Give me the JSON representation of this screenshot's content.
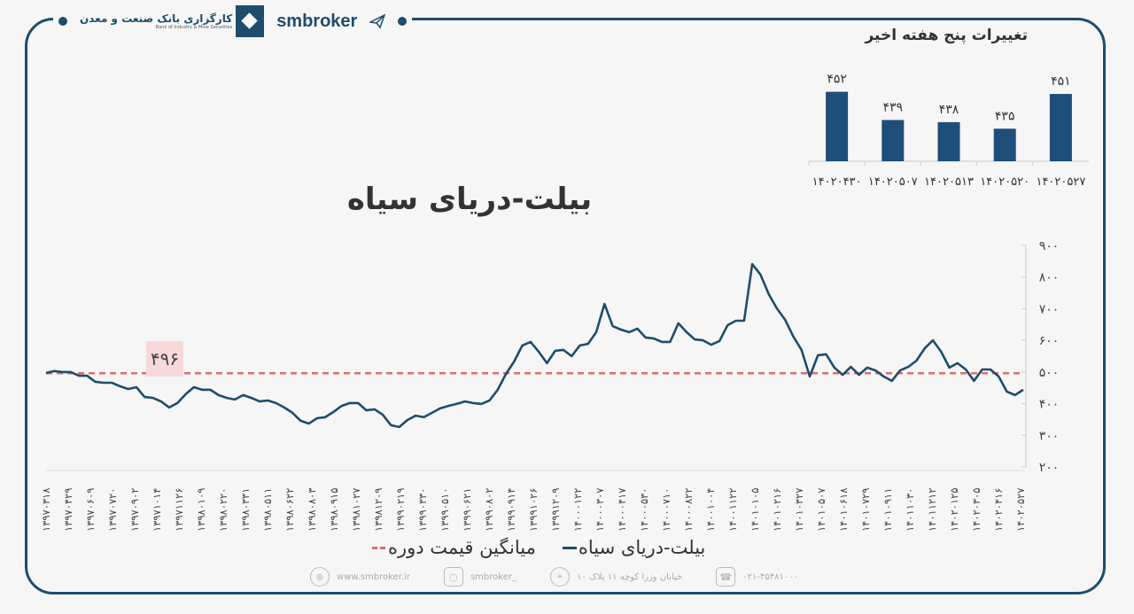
{
  "header": {
    "bank_name_fa": "کارگزاری بانک صنعت و معدن",
    "bank_name_en": "Bank of Industry & Mine Securities",
    "brand": "smbroker"
  },
  "colors": {
    "frame": "#1e4d6b",
    "series": "#1e4d6b",
    "average": "#e06c6c",
    "bars": "#1f4e79"
  },
  "chart_data": [
    {
      "type": "bar",
      "title": "تغییرات پنج هفته اخیر",
      "categories": [
        "۱۴۰۲۰۴۳۰",
        "۱۴۰۲۰۵۰۷",
        "۱۴۰۲۰۵۱۳",
        "۱۴۰۲۰۵۲۰",
        "۱۴۰۲۰۵۲۷"
      ],
      "values": [
        452,
        439,
        438,
        435,
        451
      ],
      "value_labels": [
        "۴۵۲",
        "۴۳۹",
        "۴۳۸",
        "۴۳۵",
        "۴۵۱"
      ]
    },
    {
      "type": "line",
      "title": "بیلت-دریای سیاه",
      "ylim": [
        200,
        900
      ],
      "y_ticks": [
        900,
        800,
        700,
        600,
        500,
        400,
        300,
        200
      ],
      "y_tick_labels": [
        "۹۰۰",
        "۸۰۰",
        "۷۰۰",
        "۶۰۰",
        "۵۰۰",
        "۴۰۰",
        "۳۰۰",
        "۲۰۰"
      ],
      "grid": false,
      "legend_position": "bottom",
      "x_tick_labels": [
        "۱۳۹۷۰۳۱۸",
        "۱۳۹۷۰۴۲۹",
        "۱۳۹۷۰۶۰۹",
        "۱۳۹۷۰۷۲۰",
        "۱۳۹۷۰۹۰۲",
        "۱۳۹۷۱۰۱۴",
        "۱۳۹۷۱۱۲۶",
        "۱۳۹۸۰۱۰۹",
        "۱۳۹۸۰۲۲۰",
        "۱۳۹۸۰۳۳۱",
        "۱۳۹۸۰۵۱۱",
        "۱۳۹۸۰۶۲۲",
        "۱۳۹۸۰۸۰۳",
        "۱۳۹۸۰۹۱۵",
        "۱۳۹۸۱۰۲۷",
        "۱۳۹۸۱۲۰۹",
        "۱۳۹۹۰۲۱۹",
        "۱۳۹۹۰۳۳۰",
        "۱۳۹۹۰۵۱۰",
        "۱۳۹۹۰۶۲۱",
        "۱۳۹۹۰۸۰۲",
        "۱۳۹۹۰۹۱۴",
        "۱۳۹۹۱۰۲۶",
        "۱۳۹۹۱۲۰۹",
        "۱۴۰۰۰۱۲۲",
        "۱۴۰۰۰۳۰۷",
        "۱۴۰۰۰۴۱۷",
        "۱۴۰۰۰۵۳۰",
        "۱۴۰۰۰۷۱۰",
        "۱۴۰۰۰۸۲۲",
        "۱۴۰۰۱۰۰۴",
        "۱۴۰۰۱۱۲۲",
        "۱۴۰۱۰۱۰۵",
        "۱۴۰۱۰۲۱۶",
        "۱۴۰۱۰۳۲۷",
        "۱۴۰۱۰۵۰۷",
        "۱۴۰۱۰۶۱۸",
        "۱۴۰۱۰۷۲۹",
        "۱۴۰۱۰۹۱۱",
        "۱۴۰۱۱۰۳۰",
        "۱۴۰۱۱۲۱۲",
        "۱۴۰۲۰۱۲۵",
        "۱۴۰۲۰۳۰۵",
        "۱۴۰۲۰۴۱۶",
        "۱۴۰۲۰۵۲۷"
      ],
      "series": [
        {
          "name": "بیلت-دریای سیاه",
          "values": [
            497,
            503,
            500,
            500,
            488,
            488,
            469,
            466,
            466,
            455,
            446,
            452,
            421,
            418,
            407,
            388,
            402,
            430,
            452,
            444,
            444,
            427,
            418,
            413,
            427,
            418,
            407,
            410,
            402,
            388,
            371,
            346,
            337,
            354,
            357,
            374,
            393,
            402,
            402,
            379,
            382,
            365,
            332,
            326,
            348,
            362,
            357,
            371,
            385,
            393,
            399,
            407,
            402,
            399,
            410,
            444,
            494,
            533,
            584,
            595,
            564,
            528,
            567,
            570,
            550,
            584,
            589,
            626,
            715,
            645,
            634,
            626,
            637,
            609,
            606,
            595,
            595,
            654,
            626,
            603,
            600,
            586,
            598,
            648,
            662,
            662,
            841,
            808,
            746,
            701,
            665,
            612,
            570,
            486,
            553,
            556,
            514,
            491,
            516,
            491,
            514,
            505,
            486,
            472,
            505,
            516,
            536,
            575,
            600,
            564,
            514,
            528,
            508,
            472,
            508,
            508,
            486,
            438,
            427,
            444
          ]
        },
        {
          "name": "میانگین قیمت دوره",
          "value": 496,
          "label": "۴۹۶"
        }
      ]
    }
  ],
  "footer": {
    "website": "www.smbroker.ir",
    "instagram": "smbroker_",
    "address": "خیابان وزرا کوچه ۱۱ پلاک ۱۰",
    "phone": "۰۲۱-۴۵۴۸۱۰۰۰"
  }
}
